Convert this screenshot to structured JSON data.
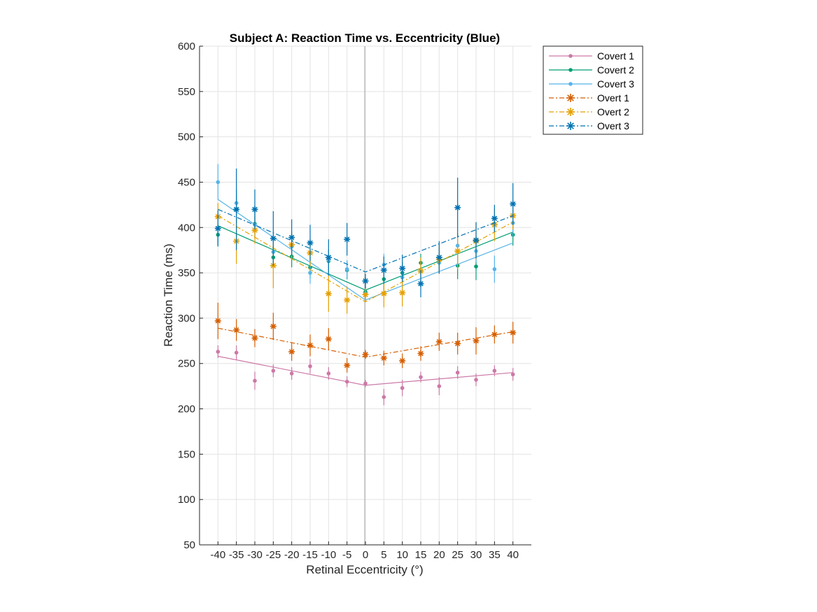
{
  "chart_data": {
    "type": "line",
    "title": "Subject A: Reaction Time vs. Eccentricity (Blue)",
    "xlabel": "Retinal Eccentricity (°)",
    "ylabel": "Reaction Time (ms)",
    "xlim": [
      -45,
      45
    ],
    "ylim": [
      50,
      600
    ],
    "x_ticks": [
      -40,
      -35,
      -30,
      -25,
      -20,
      -15,
      -10,
      -5,
      0,
      5,
      10,
      15,
      20,
      25,
      30,
      35,
      40
    ],
    "y_ticks": [
      50,
      100,
      150,
      200,
      250,
      300,
      350,
      400,
      450,
      500,
      550,
      600
    ],
    "grid": true,
    "legend_position": "outside-top-right",
    "x": [
      -40,
      -35,
      -30,
      -25,
      -20,
      -15,
      -10,
      -5,
      0,
      5,
      10,
      15,
      20,
      25,
      30,
      35,
      40
    ],
    "series": [
      {
        "name": "Covert 1",
        "color": "#cc79a7",
        "line_style": "solid",
        "marker": "dot",
        "values": [
          263,
          262,
          231,
          242,
          239,
          247,
          239,
          230,
          228,
          213,
          223,
          235,
          225,
          240,
          232,
          242,
          238
        ],
        "errors": [
          7,
          8,
          10,
          7,
          7,
          8,
          7,
          6,
          4,
          9,
          9,
          6,
          10,
          7,
          7,
          6,
          7
        ],
        "fit": [
          [
            -40,
            258
          ],
          [
            0,
            226
          ],
          [
            40,
            240
          ]
        ]
      },
      {
        "name": "Covert 2",
        "color": "#009e73",
        "line_style": "solid",
        "marker": "dot",
        "values": [
          392,
          420,
          404,
          367,
          368,
          356,
          363,
          353,
          329,
          343,
          350,
          361,
          365,
          358,
          357,
          404,
          392
        ],
        "errors": [
          12,
          15,
          15,
          12,
          12,
          12,
          12,
          10,
          8,
          12,
          12,
          10,
          12,
          15,
          15,
          10,
          12
        ],
        "fit": [
          [
            -40,
            402
          ],
          [
            0,
            331
          ],
          [
            40,
            395
          ]
        ]
      },
      {
        "name": "Covert 3",
        "color": "#56b4e9",
        "line_style": "solid",
        "marker": "dot",
        "values": [
          450,
          427,
          403,
          373,
          379,
          350,
          364,
          354,
          327,
          359,
          345,
          352,
          361,
          380,
          374,
          354,
          405
        ],
        "errors": [
          20,
          15,
          15,
          12,
          12,
          12,
          12,
          10,
          8,
          12,
          12,
          10,
          12,
          12,
          12,
          15,
          15
        ],
        "fit": [
          [
            -40,
            431
          ],
          [
            0,
            320
          ],
          [
            40,
            383
          ]
        ]
      },
      {
        "name": "Overt 1",
        "color": "#d55e00",
        "line_style": "dashdot",
        "marker": "star",
        "values": [
          297,
          287,
          278,
          291,
          263,
          270,
          277,
          248,
          260,
          256,
          253,
          261,
          274,
          272,
          275,
          282,
          284
        ],
        "errors": [
          20,
          12,
          10,
          15,
          10,
          12,
          12,
          8,
          5,
          8,
          8,
          8,
          10,
          12,
          15,
          10,
          12
        ],
        "fit": [
          [
            -40,
            289
          ],
          [
            0,
            257
          ],
          [
            40,
            285
          ]
        ]
      },
      {
        "name": "Overt 2",
        "color": "#e69f00",
        "line_style": "dashdot",
        "marker": "star",
        "values": [
          412,
          385,
          397,
          358,
          381,
          372,
          327,
          320,
          326,
          327,
          328,
          352,
          365,
          374,
          385,
          403,
          413
        ],
        "errors": [
          15,
          25,
          15,
          25,
          15,
          15,
          20,
          15,
          8,
          15,
          15,
          15,
          15,
          20,
          20,
          18,
          15
        ],
        "fit": [
          [
            -40,
            413
          ],
          [
            0,
            318
          ],
          [
            40,
            406
          ]
        ]
      },
      {
        "name": "Overt 3",
        "color": "#0072b2",
        "line_style": "dashdot",
        "marker": "star",
        "values": [
          399,
          420,
          420,
          388,
          389,
          383,
          367,
          387,
          341,
          353,
          355,
          338,
          367,
          422,
          386,
          410,
          426
        ],
        "errors": [
          20,
          45,
          22,
          30,
          20,
          20,
          20,
          18,
          8,
          15,
          15,
          15,
          18,
          33,
          20,
          15,
          23
        ],
        "fit": [
          [
            -40,
            420
          ],
          [
            0,
            351
          ],
          [
            40,
            413
          ]
        ]
      }
    ]
  }
}
